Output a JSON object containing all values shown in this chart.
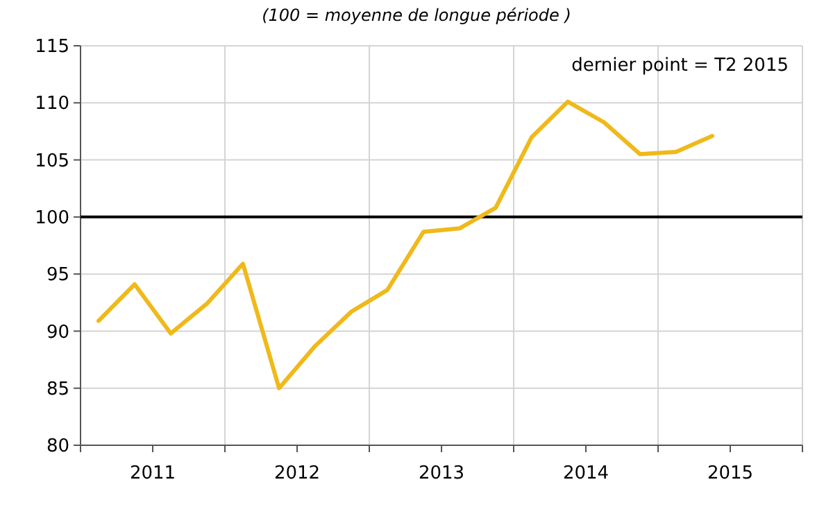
{
  "chart_data": {
    "type": "line",
    "subtitle": "(100 = moyenne de longue période )",
    "x": [
      2010.625,
      2010.875,
      2011.125,
      2011.375,
      2011.625,
      2011.875,
      2012.125,
      2012.375,
      2012.625,
      2012.875,
      2013.125,
      2013.375,
      2013.625,
      2013.875,
      2014.125,
      2014.375,
      2014.625,
      2014.875
    ],
    "series": [
      {
        "color": "#f0b91a",
        "values": [
          90.9,
          94.1,
          89.8,
          92.4,
          95.9,
          85.0,
          88.7,
          91.7,
          93.6,
          98.7,
          99.0,
          100.8,
          107.0,
          110.1,
          108.3,
          105.5,
          105.7,
          107.1
        ]
      }
    ],
    "xlim": [
      2010.5,
      2015.5
    ],
    "xticks": [
      {
        "value": 2010.5,
        "label": null
      },
      2011,
      {
        "value": 2011.5,
        "label": null
      },
      2012,
      {
        "value": 2012.5,
        "label": null
      },
      2013,
      {
        "value": 2013.5,
        "label": null
      },
      2014,
      {
        "value": 2014.5,
        "label": null
      },
      2015,
      {
        "value": 2015.5,
        "label": null
      }
    ],
    "ylim": [
      80,
      115
    ],
    "yticks": [
      80,
      85,
      90,
      95,
      100,
      105,
      110,
      115
    ],
    "grid": true,
    "marker": "none",
    "line_style": "solid",
    "ref_lines": [
      {
        "axis": "y",
        "value": 100,
        "color": "#000000"
      }
    ],
    "annotations": [
      "dernier point = T2 2015"
    ]
  }
}
